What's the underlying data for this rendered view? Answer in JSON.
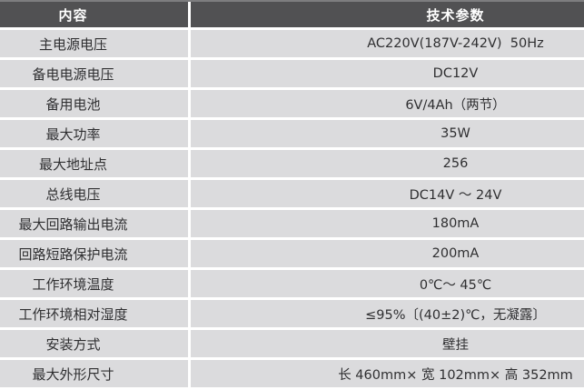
{
  "table": {
    "columns": [
      "内容",
      "技术参数"
    ],
    "rows": [
      {
        "label": "主电源电压",
        "value": "AC220V(187V-242V)  50Hz"
      },
      {
        "label": "备电电源电压",
        "value": "DC12V"
      },
      {
        "label": "备用电池",
        "value": "6V/4Ah（两节）"
      },
      {
        "label": "最大功率",
        "value": "35W"
      },
      {
        "label": "最大地址点",
        "value": "256"
      },
      {
        "label": "总线电压",
        "value": "DC14V ～ 24V"
      },
      {
        "label": "最大回路输出电流",
        "value": "180mA"
      },
      {
        "label": "回路短路保护电流",
        "value": "200mA"
      },
      {
        "label": "工作环境温度",
        "value": "0℃～ 45℃"
      },
      {
        "label": "工作环境相对湿度",
        "value": "≤95%〔(40±2)℃，无凝露〕"
      },
      {
        "label": "安装方式",
        "value": "壁挂"
      },
      {
        "label": "最大外形尺寸",
        "value": "长 460mm× 宽 102mm× 高 352mm"
      }
    ],
    "colors": {
      "header_bg": "#515153",
      "header_text": "#ffffff",
      "row_bg": "#dbdbdd",
      "row_text": "#2f2f31",
      "divider": "#ffffff",
      "top_line": "#7d7d7f"
    }
  }
}
